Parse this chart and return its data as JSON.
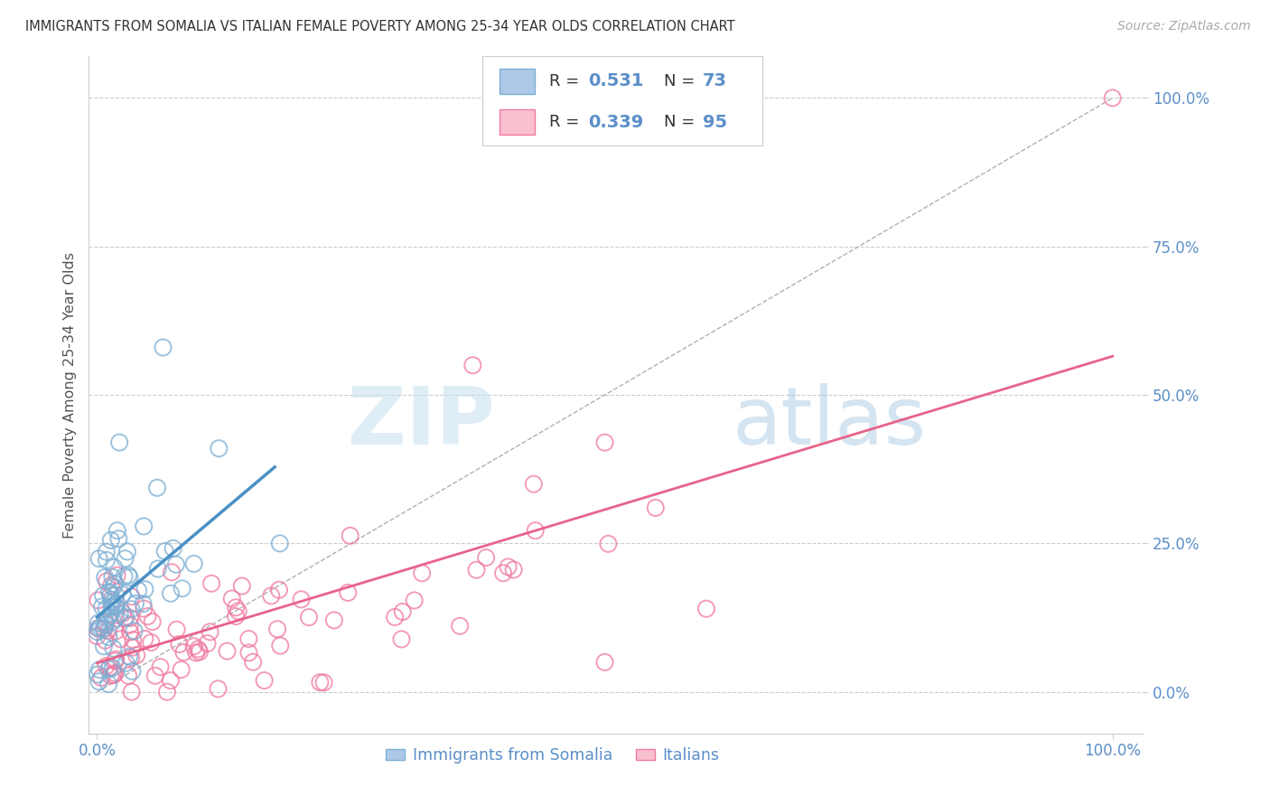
{
  "title": "IMMIGRANTS FROM SOMALIA VS ITALIAN FEMALE POVERTY AMONG 25-34 YEAR OLDS CORRELATION CHART",
  "source": "Source: ZipAtlas.com",
  "ylabel": "Female Poverty Among 25-34 Year Olds",
  "legend1_r": "0.531",
  "legend1_n": "73",
  "legend2_r": "0.339",
  "legend2_n": "95",
  "color_somalia_fill": "#aec9e8",
  "color_somalia_edge": "#7baed4",
  "color_somalia_line": "#4a90c4",
  "color_italy_fill": "#f9c0d0",
  "color_italy_edge": "#f07aa0",
  "color_italy_line": "#e8638a",
  "legend_label1": "Immigrants from Somalia",
  "legend_label2": "Italians",
  "title_color": "#333333",
  "axis_tick_color": "#5b8fc9",
  "grid_color": "#cccccc",
  "watermark": "ZIPatlas"
}
